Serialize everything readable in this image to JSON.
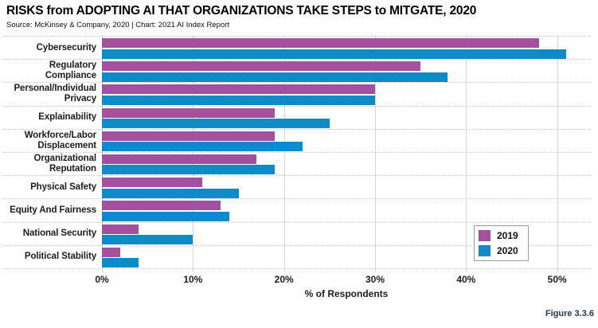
{
  "header": {
    "title": "RISKS from ADOPTING AI THAT ORGANIZATIONS TAKE STEPS to MITGATE, 2020",
    "source_line": "Source: McKinsey & Company, 2020 | Chart: 2021 AI Index Report"
  },
  "footer": {
    "figure_label": "Figure 3.3.6",
    "figure_label_color": "#233754"
  },
  "chart_data": {
    "type": "bar",
    "orientation": "horizontal",
    "title": "RISKS from ADOPTING AI THAT ORGANIZATIONS TAKE STEPS to MITGATE, 2020",
    "xlabel": "% of Respondents",
    "categories": [
      "Cybersecurity",
      "Regulatory\nCompliance",
      "Personal/Individual\nPrivacy",
      "Explainability",
      "Workforce/Labor\nDisplacement",
      "Organizational\nReputation",
      "Physical Safety",
      "Equity And Fairness",
      "National Security",
      "Political Stability"
    ],
    "series": [
      {
        "name": "2019",
        "color": "#A3519E",
        "values": [
          48,
          35,
          30,
          19,
          19,
          17,
          11,
          13,
          4,
          2
        ]
      },
      {
        "name": "2020",
        "color": "#1089C7",
        "values": [
          51,
          38,
          30,
          25,
          22,
          19,
          15,
          14,
          10,
          4
        ]
      }
    ],
    "x_ticks": [
      {
        "value": 0,
        "label": "0%"
      },
      {
        "value": 10,
        "label": "10%"
      },
      {
        "value": 20,
        "label": "20%"
      },
      {
        "value": 30,
        "label": "30%"
      },
      {
        "value": 40,
        "label": "40%"
      },
      {
        "value": 50,
        "label": "50%"
      }
    ],
    "x_axis": {
      "min": 0,
      "max_displayed": 53.7,
      "tick_interval": 10
    },
    "grid": {
      "vertical_gridlines": true,
      "horizontal_separators": "dotted"
    },
    "legend_position": "inside-bottom-right"
  }
}
